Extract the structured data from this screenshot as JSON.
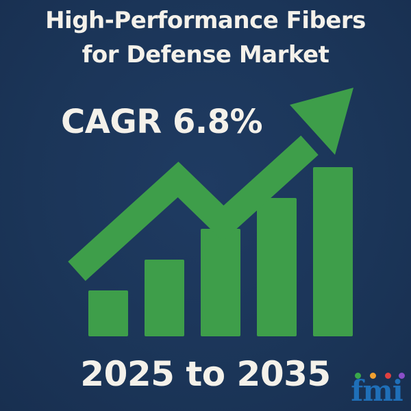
{
  "title": {
    "line1": "High-Performance Fibers",
    "line2": "for Defense Market"
  },
  "cagr_label": "CAGR 6.8%",
  "period_label": "2025 to 2035",
  "logo": {
    "text": "fmi",
    "dot_colors": [
      "#3aa84a",
      "#f0a030",
      "#e04040",
      "#8a4fc8"
    ]
  },
  "colors": {
    "background": "#1b3558",
    "accent_green": "#3e9e4a",
    "text": "#f4f1ea",
    "logo_blue": "#1f6fb8"
  },
  "chart_data": {
    "type": "bar",
    "values": [
      1,
      2,
      3,
      4,
      5
    ],
    "trend": "rising arrow",
    "title": "",
    "xlabel": "",
    "ylabel": ""
  }
}
